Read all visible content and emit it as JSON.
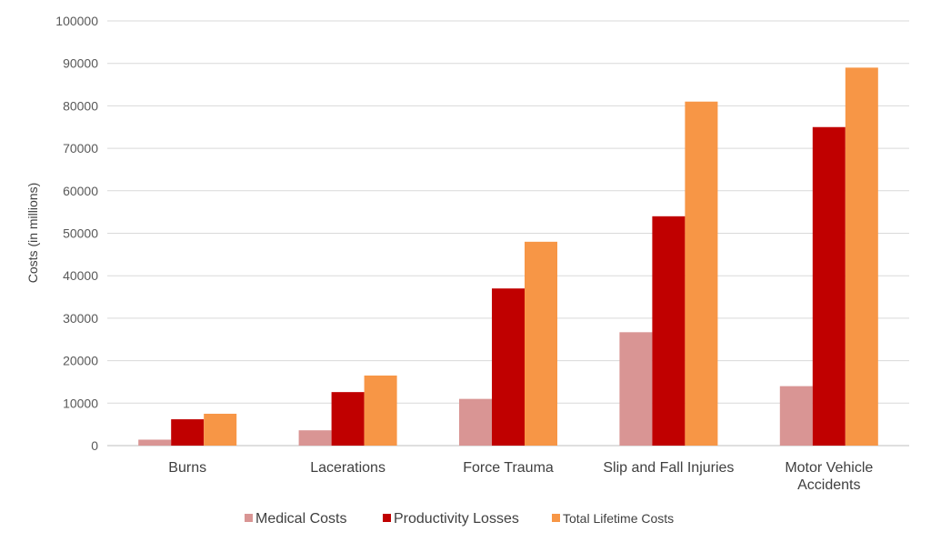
{
  "chart_data": {
    "type": "bar",
    "ylabel": "Costs (in millions)",
    "ylim": [
      0,
      100000
    ],
    "yticks": [
      "0",
      "10000",
      "20000",
      "30000",
      "40000",
      "50000",
      "60000",
      "70000",
      "80000",
      "90000",
      "100000"
    ],
    "grid": true,
    "legend_position": "bottom",
    "categories": [
      [
        "Burns"
      ],
      [
        "Lacerations"
      ],
      [
        "Force Trauma"
      ],
      [
        "Slip and Fall Injuries"
      ],
      [
        "Motor Vehicle",
        "Accidents"
      ]
    ],
    "series": [
      {
        "name": "Medical Costs",
        "color": "#d99594",
        "values": [
          1400,
          3600,
          11000,
          26700,
          14000
        ]
      },
      {
        "name": "Productivity Losses",
        "color": "#c00000",
        "values": [
          6200,
          12600,
          37000,
          54000,
          75000
        ]
      },
      {
        "name": "Total Lifetime Costs",
        "color": "#f79646",
        "values": [
          7500,
          16500,
          48000,
          81000,
          89000
        ]
      }
    ]
  }
}
